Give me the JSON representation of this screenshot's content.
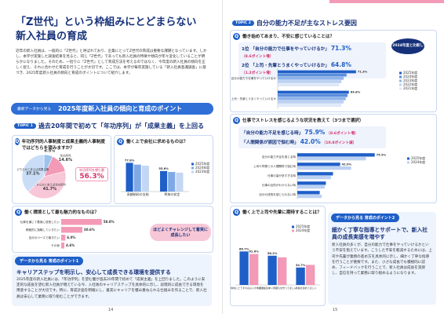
{
  "left_page": {
    "title": [
      "「Z世代」という枠組みにとどまらない",
      "新入社員の育成"
    ],
    "intro": "近年の新入社員は、一般的に「Z世代」と呼ばれており、企業にとってZ世代の育成は重要な課題となっています。しかし、本学が実施した調査結果を見ると、同じ「Z世代」であっても新入社員の特徴や傾向が年々変化していることが明らかになりました。そのため、一括りに「Z世代」として育成方法を考えるのではなく、今年度の新入社員の傾向を正しく捉え、それに合わせた育成を行うことが大切です。ここでは、本学が毎年実施している「新入社員意識調査」に基づき、2025年度新入社員の傾向と育成のポイントについて紹介します。",
    "banner": {
      "lead": "最新データから見る",
      "title": "2025年度新入社員の傾向と育成のポイント"
    },
    "topic": {
      "tag": "TOPIC 1",
      "heading": "過去20年間で初めて「年功序列」が「成果主義」を上回る"
    },
    "q1": {
      "mark": "Q",
      "question": "年功序列的人事制度と成果主義的人事制度ではどちらを望みますか？",
      "slices": [
        {
          "label": "成果主義",
          "value": 6.5,
          "value_label": "6.5%",
          "color": "#9cc3ee"
        },
        {
          "label": "年功序列",
          "value": 14.6,
          "value_label": "14.6%",
          "color": "#f39ab7"
        },
        {
          "label": "どちらかと言えば年功序列",
          "value": 41.7,
          "value_label": "41.7%",
          "color": "#f7c7d7"
        },
        {
          "label": "どちらかと言えば成果主義",
          "value": 37.1,
          "value_label": "37.1%",
          "color": "#c9def6"
        }
      ],
      "callout": {
        "label": "年功序列を望む層",
        "value": "56.3%"
      }
    },
    "q2": {
      "mark": "Q",
      "question": "働く上で会社に求めるものは？",
      "categories": [
        "高額給料の支給",
        "将来の安定"
      ],
      "series": [
        {
          "name": "2025年度",
          "color": "#1f5fc8",
          "values": [
            77.8,
            55.6
          ],
          "value_labels": [
            "77.8%",
            "55.6%"
          ]
        },
        {
          "name": "2024年度",
          "color": "#7fa9e6",
          "values": [
            73.0,
            53.0
          ],
          "value_labels": [
            null,
            null
          ]
        },
        {
          "name": "2023年度",
          "color": "#c3d6f3",
          "values": [
            70.0,
            51.0
          ],
          "value_labels": [
            null,
            null
          ]
        }
      ]
    },
    "q3": {
      "mark": "Q",
      "question": "働く環境として最も魅力的なものは？",
      "categories": [
        "仕事を通じて着実に成長したい",
        "積極的に挑戦していきたい",
        "自分のペースで働きたい",
        "その他"
      ],
      "values": [
        58.8,
        30.6,
        6.0,
        4.6
      ],
      "value_labels": [
        "58.8%",
        "30.6%",
        "6.0%",
        "4.6%"
      ],
      "color": "#f39ab7",
      "callout": "ほどよくチャレンジして着実に成長したい"
    },
    "point": {
      "tag": "データから見る 育成のポイント1",
      "heading": "キャリアステップを明示し、安心して成長できる環境を提供する",
      "body": "2025年度の新入社員には、「年功序列」を望む層が過去20年間で初めて「成果主義」を上回りました。このように安定的な成長を望む新入社員が増えている今、入社後のキャリアステップを具体的に示し、段階的に成長できる環境を用意することが大切です。特に、育成計画を明確にし、着実にキャリアを積み重ねられる仕組みを作ることで、新入社員は安心して業務に取り組むことができます。"
    },
    "page_number": "14"
  },
  "right_page": {
    "topic": {
      "tag": "TOPIC 2",
      "heading": "自分の能力不足が主なストレス要因"
    },
    "q1": {
      "mark": "Q",
      "question": "働き始めてあまり、不安に感じていることは？",
      "note": "2024年度と比較した結果",
      "highlights": [
        {
          "rank": "1位",
          "text": "「自分の能力で仕事をやっていけるか」",
          "value": "71.3%",
          "change": "（8.6ポイント増）"
        },
        {
          "rank": "2位",
          "text": "「上司・先輩とうまくやっていけるか」",
          "value": "64.8%",
          "change": "（1.2ポイント増）"
        }
      ],
      "categories": [
        "自分の能力で仕事をやっていけるか",
        "上司・先輩とうまくやっていけるか"
      ],
      "series": [
        {
          "name": "2025年度",
          "color": "#1f5fc8",
          "values": [
            71.3,
            64.8
          ],
          "value_labels": [
            "71.3%",
            "64.8%"
          ]
        },
        {
          "name": "2024年度",
          "color": "#5b8fdc",
          "values": [
            62.7,
            63.6
          ],
          "value_labels": [
            null,
            null
          ]
        },
        {
          "name": "2023年度",
          "color": "#8fb3ea",
          "values": [
            60.0,
            62.0
          ],
          "value_labels": [
            null,
            null
          ]
        },
        {
          "name": "2022年度",
          "color": "#bcd1f2",
          "values": [
            58.0,
            60.0
          ],
          "value_labels": [
            null,
            null
          ]
        },
        {
          "name": "2021年度",
          "color": "#dde8f8",
          "values": [
            56.0,
            58.0
          ],
          "value_labels": [
            null,
            null
          ]
        }
      ]
    },
    "q2": {
      "mark": "Q",
      "question": "仕事でストレスを感じるような状況を教えて（3つまで選択）",
      "highlights": [
        {
          "text": "「自分の能力不足を感じる時」",
          "value": "75.9%",
          "change": "（8.6ポイント増）"
        },
        {
          "text": "「人間関係が原因で悩む時」",
          "value": "42.0%",
          "change": "（10.8ポイント減）"
        }
      ],
      "categories": [
        "自分の能力不足を感じる時",
        "上司や同僚との人間関係で悩む時",
        "仕事の量が多すぎる時",
        "仕事の目的がわからない時",
        "自分の成長を感じられない時"
      ],
      "series": [
        {
          "name": "2025年度",
          "color": "#1f5fc8",
          "values": [
            75.9,
            42.0,
            35.0,
            28.0,
            22.0
          ],
          "value_labels": [
            "75.9%",
            "42.0%",
            null,
            null,
            null
          ]
        },
        {
          "name": "2024年度",
          "color": "#bcd1f2",
          "values": [
            67.3,
            52.8,
            33.0,
            27.0,
            24.0
          ],
          "value_labels": [
            null,
            null,
            null,
            null,
            null
          ]
        }
      ]
    },
    "q3": {
      "mark": "Q",
      "question": "働く上で上司や先輩に期待することは？",
      "categories": [
        "具体的にどうすればよいか教えてほしい",
        "相談しやすい雰囲気を作ってほしい",
        "成長を認めてほしい"
      ],
      "series": [
        {
          "name": "2025年度",
          "color": "#1f5fc8",
          "values": [
            66.7,
            58.2,
            34.7
          ],
          "value_labels": [
            "66.7%",
            "58.2%",
            "34.7%"
          ]
        },
        {
          "name": "2024年度",
          "color": "#f39ab7",
          "values": [
            61.6,
            55.0,
            40.0
          ],
          "value_labels": [
            "61.6%",
            null,
            null
          ]
        }
      ]
    },
    "point": {
      "tag": "データから見る 育成のポイント2",
      "heading": "細かく丁寧な指導とサポートで、新入社員の成長実感を増やす",
      "body": "新入社員の多くが、自分の能力で仕事をやっていけるかという不安を抱えています。こうした不安を軽減するためには、上司や先輩が業務の進め方を具体的に示し、細かく丁寧な指導を行うことが重要です。また、小さな成長でも積極的に認め、フィードバックを行うことで、新入社員は成長を実感し、自信を持って業務に取り組めるようになります。"
    },
    "page_number": "15"
  }
}
